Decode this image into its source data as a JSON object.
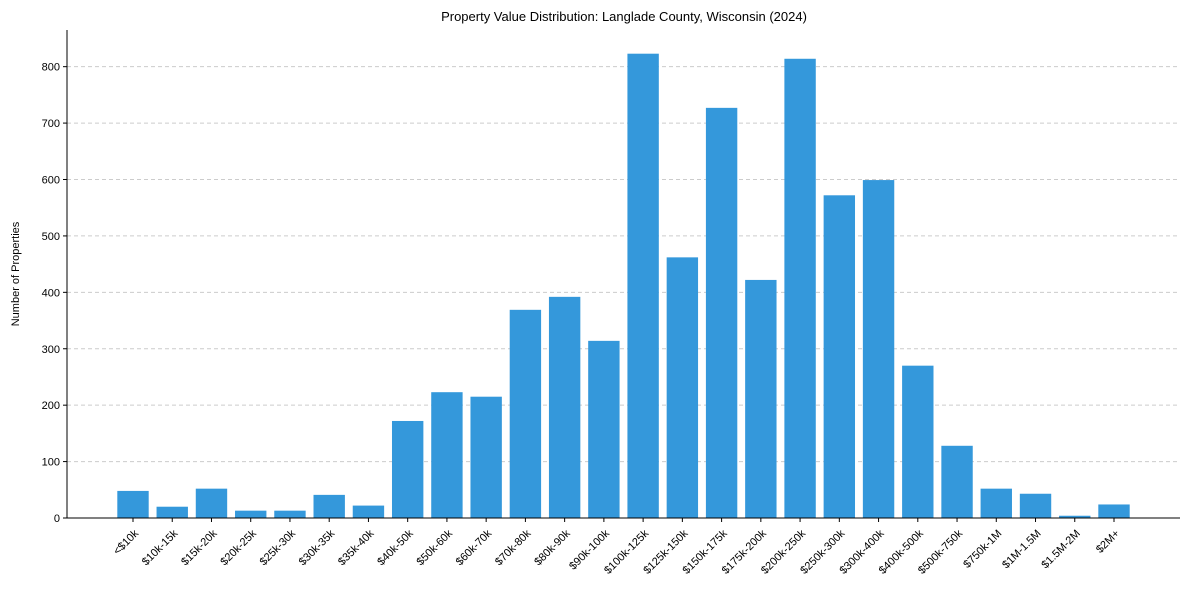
{
  "chart_data": {
    "type": "bar",
    "title": "Property Value Distribution: Langlade County, Wisconsin (2024)",
    "xlabel": "",
    "ylabel": "Number of Properties",
    "ylim": [
      0,
      865
    ],
    "yticks": [
      0,
      100,
      200,
      300,
      400,
      500,
      600,
      700,
      800
    ],
    "grid": "y-dashed",
    "bar_color": "#3498db",
    "categories": [
      "<$10k",
      "$10k-15k",
      "$15k-20k",
      "$20k-25k",
      "$25k-30k",
      "$30k-35k",
      "$35k-40k",
      "$40k-50k",
      "$50k-60k",
      "$60k-70k",
      "$70k-80k",
      "$80k-90k",
      "$90k-100k",
      "$100k-125k",
      "$125k-150k",
      "$150k-175k",
      "$175k-200k",
      "$200k-250k",
      "$250k-300k",
      "$300k-400k",
      "$400k-500k",
      "$500k-750k",
      "$750k-1M",
      "$1M-1.5M",
      "$1.5M-2M",
      "$2M+"
    ],
    "values": [
      48,
      20,
      52,
      13,
      13,
      41,
      22,
      172,
      223,
      215,
      369,
      392,
      314,
      823,
      462,
      727,
      422,
      814,
      572,
      599,
      270,
      128,
      52,
      43,
      4,
      24
    ]
  }
}
